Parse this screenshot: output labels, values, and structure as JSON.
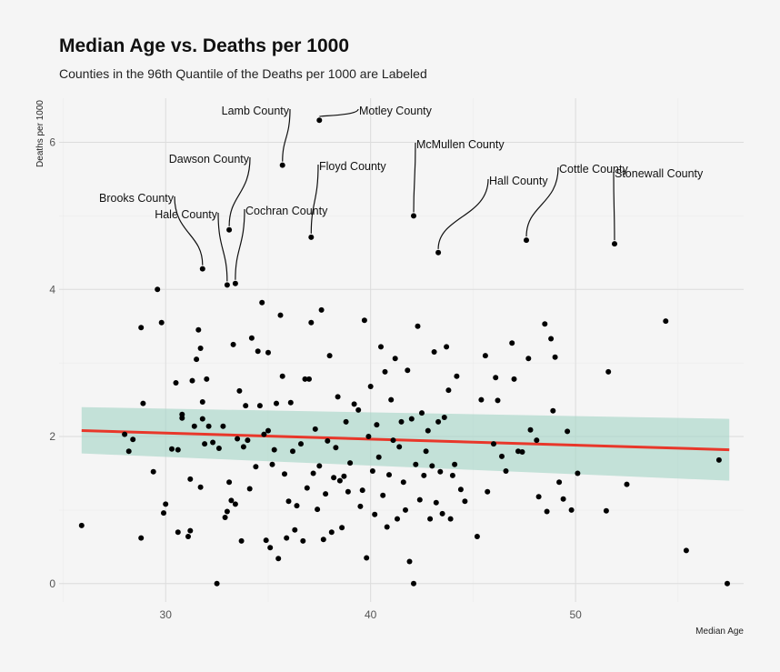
{
  "chart_data": {
    "type": "scatter",
    "title": "Median Age vs. Deaths per 1000",
    "subtitle": "Counties in the 96th Quantile of the Deaths per 1000 are Labeled",
    "xlabel": "Median Age",
    "ylabel": "Deaths per 1000",
    "xlim": [
      24.8,
      58.2
    ],
    "ylim": [
      -0.25,
      6.6
    ],
    "x_ticks": [
      30,
      40,
      50
    ],
    "y_ticks": [
      0,
      2,
      4,
      6
    ],
    "grid": true,
    "colors": {
      "points": "#000000",
      "trend": "#e8372a",
      "band": "#a8d5c8",
      "background": "#f5f5f5"
    },
    "trend": {
      "x": [
        25.9,
        57.5
      ],
      "y": [
        2.08,
        1.82
      ],
      "band_low": [
        1.77,
        1.4
      ],
      "band_high": [
        2.4,
        2.24
      ]
    },
    "labeled_points": [
      {
        "label": "Motley County",
        "x": 37.5,
        "y": 6.3
      },
      {
        "label": "Lamb County",
        "x": 35.7,
        "y": 5.69
      },
      {
        "label": "McMullen County",
        "x": 42.1,
        "y": 5.0
      },
      {
        "label": "Floyd County",
        "x": 37.1,
        "y": 4.71
      },
      {
        "label": "Dawson County",
        "x": 33.1,
        "y": 4.81
      },
      {
        "label": "Hall County",
        "x": 43.3,
        "y": 4.5
      },
      {
        "label": "Cottle County",
        "x": 47.6,
        "y": 4.67
      },
      {
        "label": "Stonewall County",
        "x": 51.9,
        "y": 4.62
      },
      {
        "label": "Brooks County",
        "x": 31.8,
        "y": 4.28
      },
      {
        "label": "Hale County",
        "x": 33.0,
        "y": 4.06
      },
      {
        "label": "Cochran County",
        "x": 33.4,
        "y": 4.08
      }
    ],
    "points": [
      [
        25.9,
        0.79
      ],
      [
        28.0,
        2.03
      ],
      [
        28.2,
        1.8
      ],
      [
        28.4,
        1.96
      ],
      [
        28.8,
        0.62
      ],
      [
        28.8,
        3.48
      ],
      [
        28.9,
        2.45
      ],
      [
        29.4,
        1.52
      ],
      [
        29.6,
        4.0
      ],
      [
        29.8,
        3.55
      ],
      [
        29.9,
        0.96
      ],
      [
        30.0,
        1.08
      ],
      [
        30.3,
        1.83
      ],
      [
        30.5,
        2.73
      ],
      [
        30.6,
        1.82
      ],
      [
        30.6,
        0.7
      ],
      [
        30.8,
        2.3
      ],
      [
        30.8,
        2.25
      ],
      [
        31.1,
        0.64
      ],
      [
        31.2,
        0.72
      ],
      [
        31.2,
        1.42
      ],
      [
        31.3,
        2.76
      ],
      [
        31.4,
        2.14
      ],
      [
        31.5,
        3.05
      ],
      [
        31.6,
        3.45
      ],
      [
        31.7,
        3.2
      ],
      [
        31.7,
        1.31
      ],
      [
        31.8,
        2.47
      ],
      [
        31.8,
        2.24
      ],
      [
        31.9,
        1.9
      ],
      [
        32.0,
        2.78
      ],
      [
        32.1,
        2.14
      ],
      [
        32.3,
        1.92
      ],
      [
        32.5,
        0.0
      ],
      [
        32.6,
        1.84
      ],
      [
        32.8,
        2.14
      ],
      [
        32.9,
        0.9
      ],
      [
        33.0,
        0.98
      ],
      [
        33.1,
        1.38
      ],
      [
        33.2,
        1.13
      ],
      [
        33.3,
        3.25
      ],
      [
        33.4,
        1.08
      ],
      [
        33.5,
        1.97
      ],
      [
        33.6,
        2.62
      ],
      [
        33.7,
        0.58
      ],
      [
        33.8,
        1.86
      ],
      [
        33.9,
        2.42
      ],
      [
        34.0,
        1.95
      ],
      [
        34.1,
        1.29
      ],
      [
        34.2,
        3.34
      ],
      [
        34.4,
        1.59
      ],
      [
        34.5,
        3.16
      ],
      [
        34.6,
        2.42
      ],
      [
        34.7,
        3.82
      ],
      [
        34.8,
        2.03
      ],
      [
        34.9,
        0.59
      ],
      [
        35.0,
        3.14
      ],
      [
        35.0,
        2.08
      ],
      [
        35.1,
        0.49
      ],
      [
        35.2,
        1.62
      ],
      [
        35.3,
        1.82
      ],
      [
        35.4,
        2.45
      ],
      [
        35.5,
        0.34
      ],
      [
        35.6,
        3.65
      ],
      [
        35.7,
        2.82
      ],
      [
        35.8,
        1.49
      ],
      [
        35.9,
        0.62
      ],
      [
        36.0,
        1.12
      ],
      [
        36.1,
        2.46
      ],
      [
        36.2,
        1.8
      ],
      [
        36.3,
        0.73
      ],
      [
        36.4,
        1.06
      ],
      [
        36.6,
        1.9
      ],
      [
        36.7,
        0.58
      ],
      [
        36.8,
        2.78
      ],
      [
        36.9,
        1.3
      ],
      [
        37.0,
        2.78
      ],
      [
        37.1,
        3.55
      ],
      [
        37.2,
        1.5
      ],
      [
        37.3,
        2.1
      ],
      [
        37.4,
        1.01
      ],
      [
        37.5,
        1.6
      ],
      [
        37.6,
        3.72
      ],
      [
        37.7,
        0.6
      ],
      [
        37.8,
        1.22
      ],
      [
        37.9,
        1.94
      ],
      [
        38.0,
        3.1
      ],
      [
        38.1,
        0.7
      ],
      [
        38.2,
        1.44
      ],
      [
        38.3,
        1.85
      ],
      [
        38.4,
        2.54
      ],
      [
        38.5,
        1.4
      ],
      [
        38.6,
        0.76
      ],
      [
        38.7,
        1.46
      ],
      [
        38.8,
        2.2
      ],
      [
        38.9,
        1.25
      ],
      [
        39.0,
        1.64
      ],
      [
        39.2,
        2.44
      ],
      [
        39.4,
        2.36
      ],
      [
        39.5,
        1.05
      ],
      [
        39.6,
        1.27
      ],
      [
        39.7,
        3.58
      ],
      [
        39.8,
        0.35
      ],
      [
        39.9,
        2.0
      ],
      [
        40.0,
        2.68
      ],
      [
        40.1,
        1.53
      ],
      [
        40.2,
        0.94
      ],
      [
        40.3,
        2.16
      ],
      [
        40.4,
        1.72
      ],
      [
        40.5,
        3.22
      ],
      [
        40.6,
        1.2
      ],
      [
        40.7,
        2.88
      ],
      [
        40.8,
        0.77
      ],
      [
        40.9,
        1.48
      ],
      [
        41.0,
        2.5
      ],
      [
        41.1,
        1.95
      ],
      [
        41.2,
        3.06
      ],
      [
        41.3,
        0.88
      ],
      [
        41.4,
        1.86
      ],
      [
        41.5,
        2.2
      ],
      [
        41.6,
        1.38
      ],
      [
        41.7,
        1.0
      ],
      [
        41.8,
        2.9
      ],
      [
        41.9,
        0.3
      ],
      [
        42.0,
        2.24
      ],
      [
        42.1,
        0.0
      ],
      [
        42.2,
        1.62
      ],
      [
        42.3,
        3.5
      ],
      [
        42.4,
        1.14
      ],
      [
        42.5,
        2.32
      ],
      [
        42.6,
        1.47
      ],
      [
        42.7,
        1.8
      ],
      [
        42.8,
        2.08
      ],
      [
        42.9,
        0.88
      ],
      [
        43.0,
        1.6
      ],
      [
        43.1,
        3.15
      ],
      [
        43.2,
        1.1
      ],
      [
        43.3,
        2.2
      ],
      [
        43.4,
        1.52
      ],
      [
        43.5,
        0.95
      ],
      [
        43.6,
        2.26
      ],
      [
        43.7,
        3.22
      ],
      [
        43.8,
        2.63
      ],
      [
        43.9,
        0.88
      ],
      [
        44.0,
        1.47
      ],
      [
        44.1,
        1.62
      ],
      [
        44.2,
        2.82
      ],
      [
        44.4,
        1.28
      ],
      [
        44.6,
        1.12
      ],
      [
        45.2,
        0.64
      ],
      [
        45.4,
        2.5
      ],
      [
        45.6,
        3.1
      ],
      [
        45.7,
        1.25
      ],
      [
        46.0,
        1.9
      ],
      [
        46.1,
        2.8
      ],
      [
        46.2,
        2.49
      ],
      [
        46.4,
        1.73
      ],
      [
        46.6,
        1.53
      ],
      [
        46.9,
        3.27
      ],
      [
        47.0,
        2.78
      ],
      [
        47.2,
        1.8
      ],
      [
        47.4,
        1.79
      ],
      [
        47.7,
        3.06
      ],
      [
        47.8,
        2.09
      ],
      [
        48.1,
        1.95
      ],
      [
        48.2,
        1.18
      ],
      [
        48.5,
        3.53
      ],
      [
        48.6,
        0.98
      ],
      [
        48.8,
        3.33
      ],
      [
        48.9,
        2.35
      ],
      [
        49.0,
        3.08
      ],
      [
        49.2,
        1.38
      ],
      [
        49.4,
        1.15
      ],
      [
        49.6,
        2.07
      ],
      [
        49.8,
        1.0
      ],
      [
        50.1,
        1.5
      ],
      [
        51.5,
        0.99
      ],
      [
        51.6,
        2.88
      ],
      [
        52.5,
        1.35
      ],
      [
        54.4,
        3.57
      ],
      [
        55.4,
        0.45
      ],
      [
        57.0,
        1.68
      ],
      [
        57.4,
        0.0
      ]
    ]
  }
}
